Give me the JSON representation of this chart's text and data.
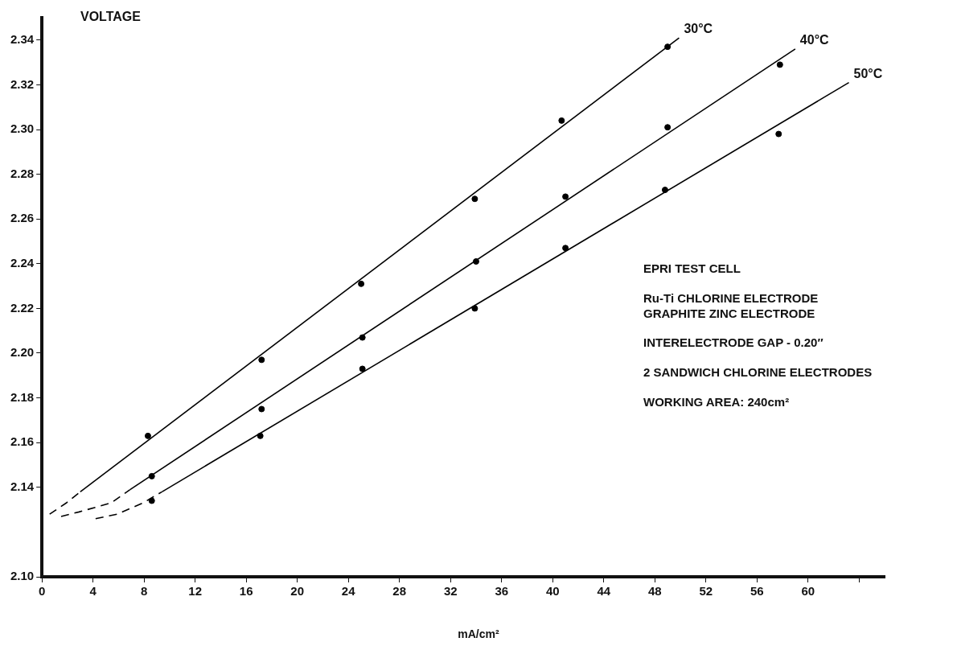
{
  "chart_data": {
    "type": "scatter",
    "ylabel": "VOLTAGE",
    "xlabel": "mA/cm²",
    "xlim": [
      0,
      66
    ],
    "xticks": [
      0,
      4,
      8,
      12,
      16,
      20,
      24,
      28,
      32,
      36,
      40,
      44,
      48,
      52,
      56,
      60,
      {
        "value": 64,
        "label": null
      }
    ],
    "ylim": [
      2.1,
      2.35
    ],
    "yticks": [
      {
        "value": 2.1,
        "label": "2.10"
      },
      2.14,
      2.16,
      2.18,
      {
        "value": 2.2,
        "label": "2.20"
      },
      2.22,
      2.24,
      2.26,
      2.28,
      {
        "value": 2.3,
        "label": "2.30"
      },
      2.32,
      2.34
    ],
    "grid": false,
    "legend": false,
    "marker": "circle",
    "annotations": [
      "EPRI TEST CELL",
      "Ru-Ti CHLORINE ELECTRODE\nGRAPHITE ZINC ELECTRODE",
      "INTERELECTRODE GAP - 0.20″",
      "2 SANDWICH CHLORINE ELECTRODES",
      "WORKING AREA: 240cm²"
    ],
    "series": [
      {
        "type": "scatter",
        "color": "#000000",
        "x": [
          8.3,
          17.2,
          25.0,
          33.9,
          40.7,
          49.0
        ],
        "values": [
          2.163,
          2.197,
          2.231,
          2.269,
          2.304,
          2.337
        ]
      },
      {
        "type": "scatter",
        "color": "#000000",
        "x": [
          8.6,
          17.2,
          25.1,
          34.0,
          41.0,
          49.0,
          57.8
        ],
        "values": [
          2.145,
          2.175,
          2.207,
          2.241,
          2.27,
          2.301,
          2.329
        ]
      },
      {
        "type": "scatter",
        "color": "#000000",
        "x": [
          8.6,
          17.1,
          25.1,
          33.9,
          41.0,
          48.8,
          57.7
        ],
        "values": [
          2.134,
          2.163,
          2.193,
          2.22,
          2.247,
          2.273,
          2.298
        ]
      },
      {
        "name": "30°C",
        "type": "line",
        "color": "#000000",
        "line_style": "solid",
        "marker": "none",
        "x": [
          3.0,
          49.9
        ],
        "values": [
          2.138,
          2.341
        ]
      },
      {
        "name": "40°C",
        "type": "line",
        "color": "#000000",
        "line_style": "solid",
        "marker": "none",
        "x": [
          6.9,
          59.0
        ],
        "values": [
          2.139,
          2.336
        ]
      },
      {
        "name": "50°C",
        "type": "line",
        "color": "#000000",
        "line_style": "solid",
        "marker": "none",
        "x": [
          9.4,
          63.2
        ],
        "values": [
          2.138,
          2.321
        ]
      },
      {
        "type": "line",
        "color": "#000000",
        "line_style": "dashed",
        "marker": "none",
        "x": [
          0.6,
          1.9,
          3.0
        ],
        "values": [
          2.128,
          2.133,
          2.138
        ]
      },
      {
        "type": "line",
        "color": "#000000",
        "line_style": "dashed",
        "marker": "none",
        "x": [
          1.5,
          2.9,
          5.4,
          6.9
        ],
        "values": [
          2.127,
          2.129,
          2.133,
          2.139
        ]
      },
      {
        "type": "line",
        "color": "#000000",
        "line_style": "dashed",
        "marker": "none",
        "x": [
          4.2,
          5.9,
          7.9,
          9.4
        ],
        "values": [
          2.126,
          2.128,
          2.133,
          2.138
        ]
      }
    ]
  }
}
